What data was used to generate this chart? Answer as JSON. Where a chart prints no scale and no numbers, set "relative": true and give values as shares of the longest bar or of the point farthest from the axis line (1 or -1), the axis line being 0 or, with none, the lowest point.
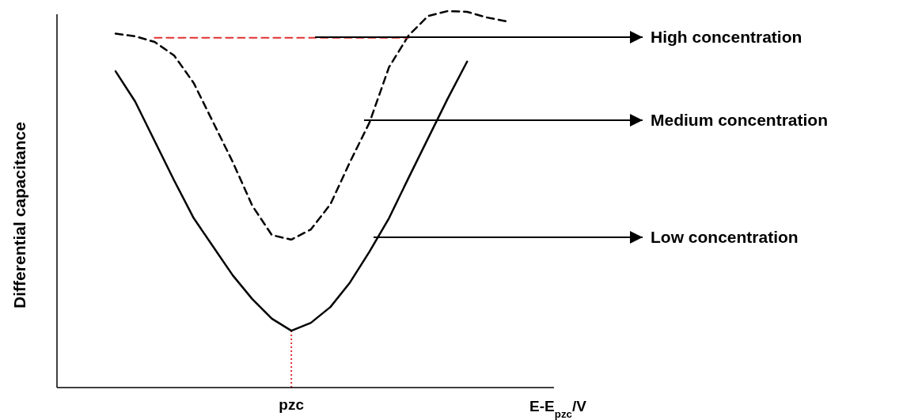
{
  "chart_data": {
    "type": "line",
    "relative": true,
    "ylabel": "Differential capacitance",
    "xlabel": "E-E$_{pzc}$/V",
    "marker": "none",
    "categories": [
      null,
      null,
      null,
      null,
      null,
      null,
      null,
      null,
      null,
      null,
      null,
      null,
      null,
      null,
      null,
      null,
      null,
      null,
      null,
      null,
      null,
      null,
      null,
      null,
      null,
      null
    ],
    "series": [
      {
        "color": "#000000",
        "line_style": "solid",
        "values": [
          null,
          null,
          null,
          0.84,
          0.76,
          0.655,
          0.55,
          0.45,
          0.374,
          0.298,
          0.235,
          0.183,
          0.151,
          0.172,
          0.214,
          0.279,
          0.361,
          0.45,
          0.557,
          0.662,
          0.767,
          0.866,
          null,
          null,
          null,
          null
        ]
      },
      {
        "color": "#000000",
        "line_style": "dashed",
        "values": [
          null,
          null,
          null,
          0.94,
          0.933,
          0.918,
          0.882,
          0.809,
          0.704,
          0.599,
          0.483,
          0.405,
          0.393,
          0.42,
          0.487,
          0.599,
          0.704,
          0.851,
          0.935,
          0.987,
          1,
          0.998,
          0.983,
          0.973,
          null,
          null
        ]
      },
      {
        "color": "#e03030",
        "line_style": "dashed",
        "values": [
          null,
          null,
          null,
          null,
          null,
          0.929,
          0.929,
          0.929,
          0.929,
          0.929,
          0.929,
          0.929,
          0.929,
          0.929,
          0.929,
          0.929,
          0.929,
          0.929,
          0.929,
          null,
          null,
          null,
          null,
          null,
          null,
          null
        ]
      }
    ],
    "annotations": [
      "pzc",
      "High concentration",
      "Medium concentration",
      "Low concentration"
    ]
  }
}
